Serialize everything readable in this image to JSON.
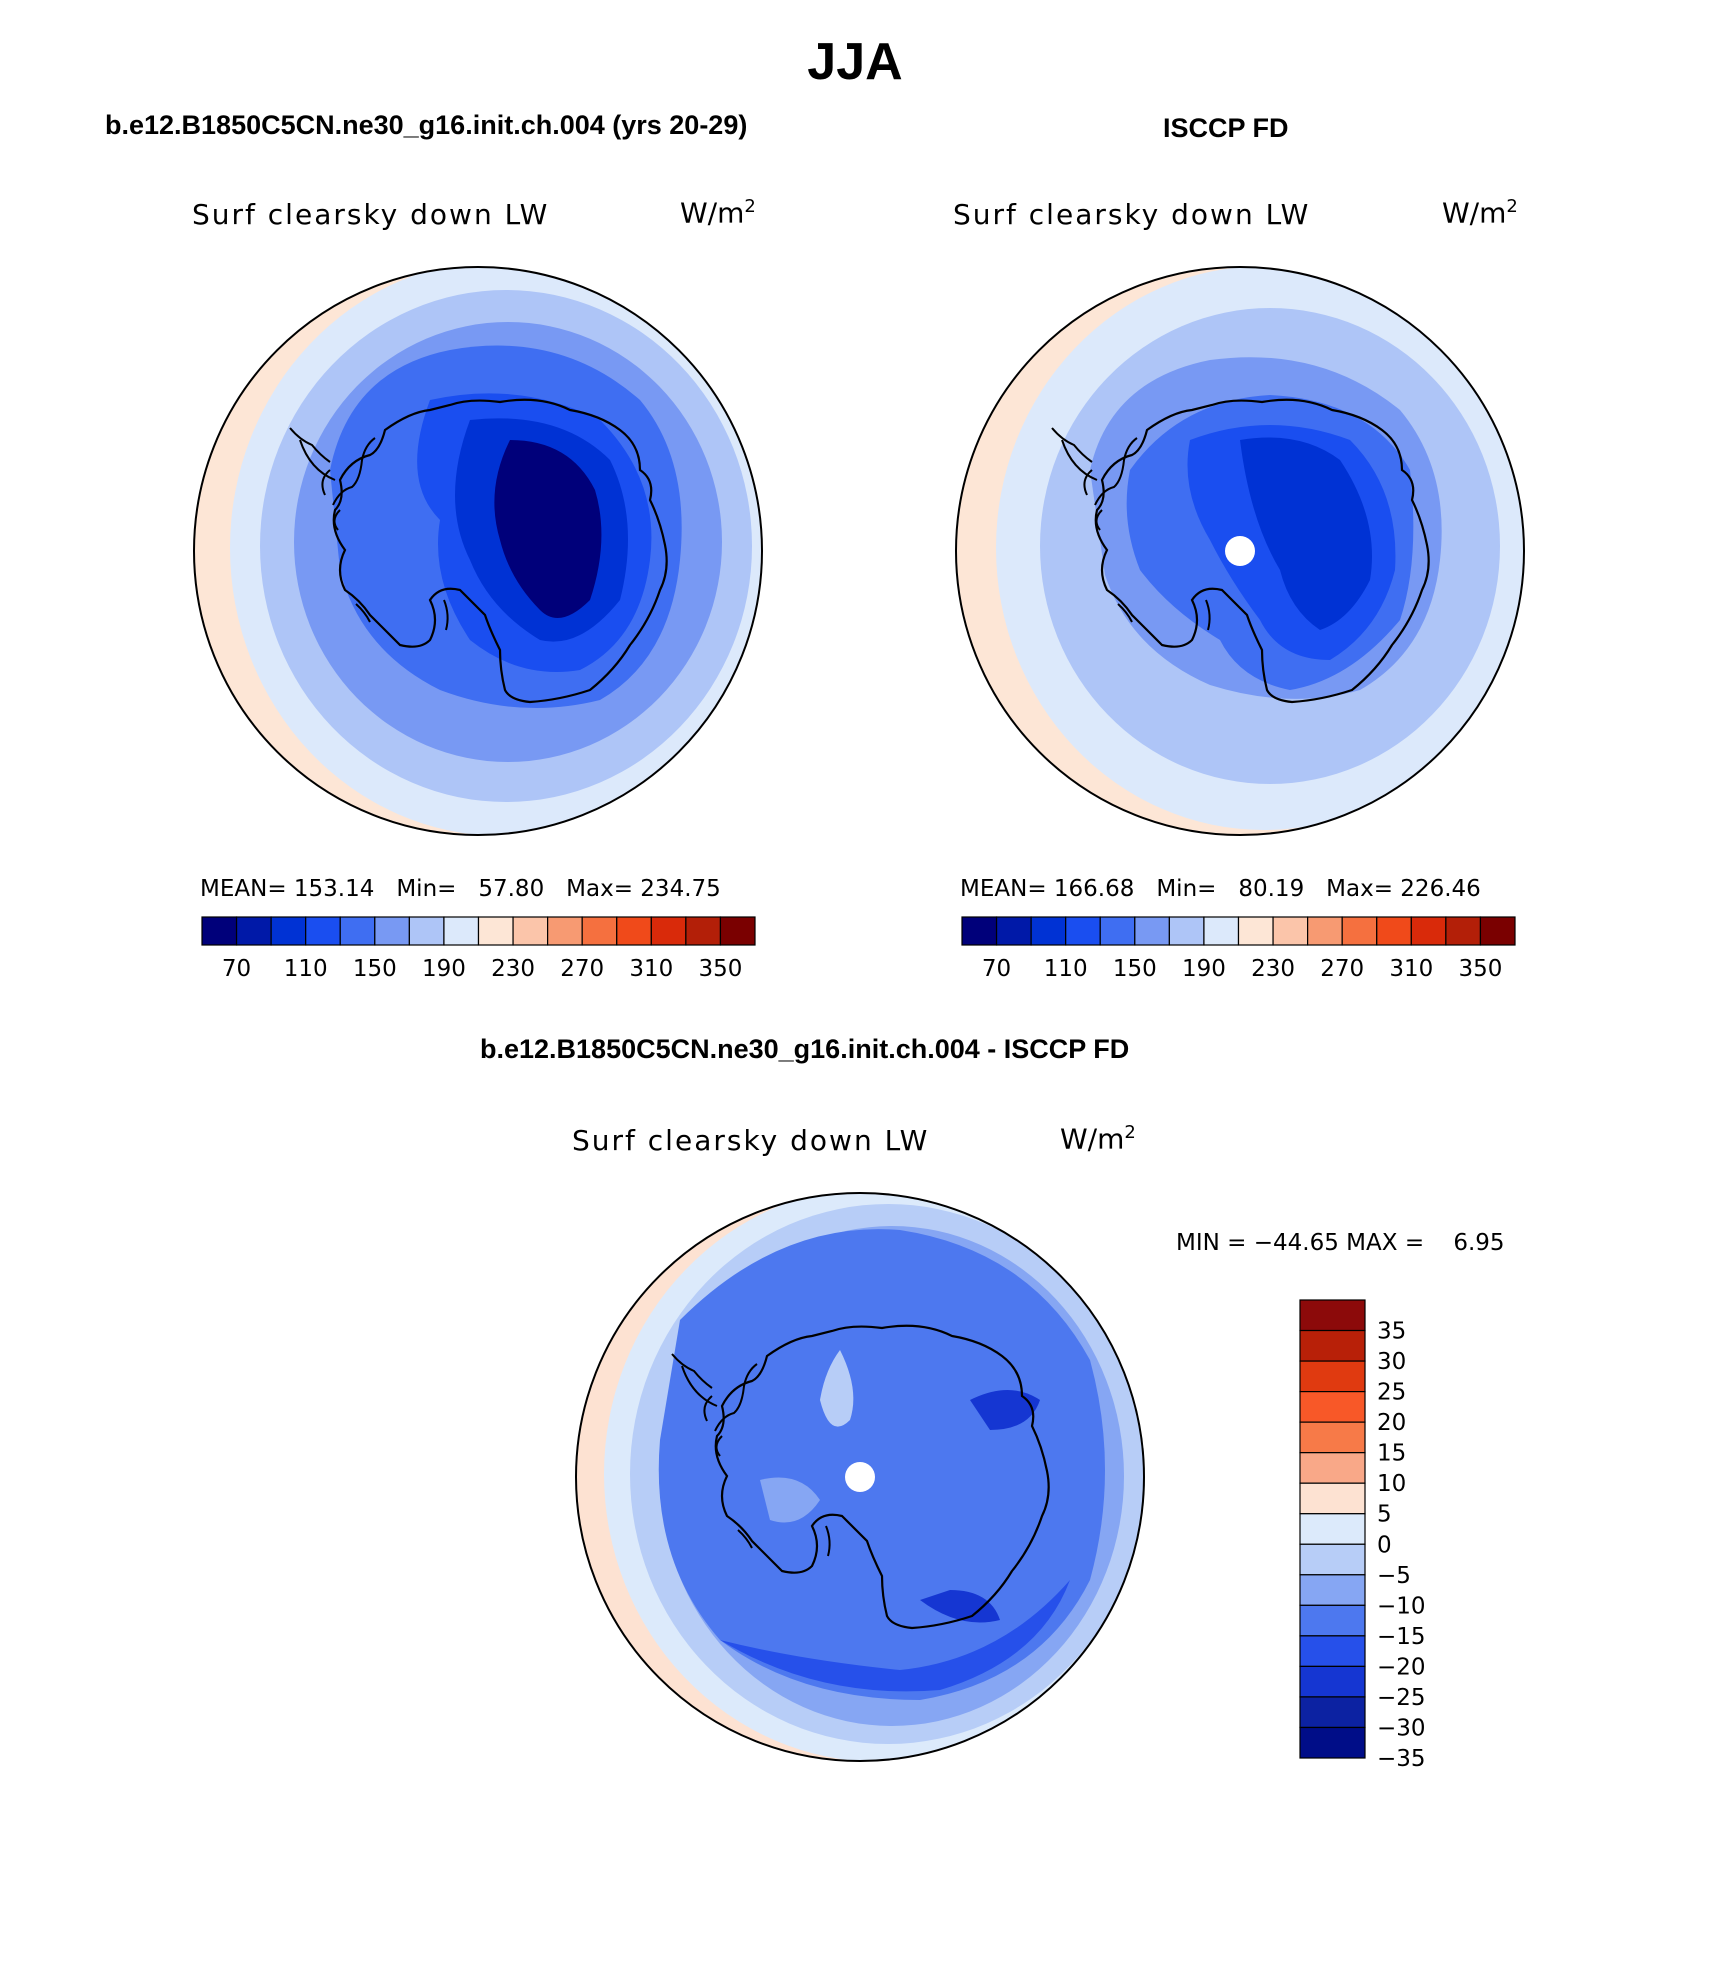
{
  "page": {
    "title": "JJA"
  },
  "panels": [
    {
      "id": "model",
      "title": "b.e12.B1850C5CN.ne30_g16.init.ch.004 (yrs 20-29)",
      "variable": "Surf clearsky down LW",
      "units": "W/m",
      "units_exp": "2",
      "stats": {
        "mean_label": "MEAN=",
        "mean": "153.14",
        "min_label": "Min=",
        "min": "57.80",
        "max_label": "Max=",
        "max": "234.75"
      }
    },
    {
      "id": "obs",
      "title": "ISCCP FD",
      "variable": "Surf clearsky down LW",
      "units": "W/m",
      "units_exp": "2",
      "stats": {
        "mean_label": "MEAN=",
        "mean": "166.68",
        "min_label": "Min=",
        "min": "80.19",
        "max_label": "Max=",
        "max": "226.46"
      }
    },
    {
      "id": "diff",
      "title": "b.e12.B1850C5CN.ne30_g16.init.ch.004 - ISCCP FD",
      "variable": "Surf clearsky down LW",
      "units": "W/m",
      "units_exp": "2",
      "stats": {
        "min_label": "MIN =",
        "min": "−44.65",
        "max_label": "MAX =",
        "max": "6.95"
      }
    }
  ],
  "colorbars": {
    "abs": {
      "colors": [
        "#00007a",
        "#0019a8",
        "#0032d4",
        "#1a4ef0",
        "#3f6ef2",
        "#7899f3",
        "#aec5f7",
        "#dce9fb",
        "#fde6d6",
        "#fbc5aa",
        "#f79a72",
        "#f5703f",
        "#f04a1a",
        "#d92a0a",
        "#b31f08",
        "#7a0000"
      ],
      "tick_labels": [
        "70",
        "110",
        "150",
        "190",
        "230",
        "270",
        "310",
        "350"
      ]
    },
    "diff": {
      "colors": [
        "#8c0a0a",
        "#b82008",
        "#e03a10",
        "#f85828",
        "#f77a48",
        "#f9a888",
        "#fde2d2",
        "#dceafb",
        "#b7cdf7",
        "#86a6f3",
        "#4d78ef",
        "#2650ea",
        "#1536d2",
        "#0c22a2",
        "#000d88"
      ],
      "tick_labels": [
        "35",
        "30",
        "25",
        "20",
        "15",
        "10",
        "5",
        "0",
        "−5",
        "−10",
        "−15",
        "−20",
        "−25",
        "−30",
        "−35"
      ]
    }
  },
  "map_fill": {
    "model": [
      "#fde6d6",
      "#dce9fb",
      "#aec5f7",
      "#7899f3",
      "#3f6ef2",
      "#1a4ef0",
      "#0032d4",
      "#00007a"
    ],
    "obs": [
      "#fde6d6",
      "#dce9fb",
      "#aec5f7",
      "#7899f3",
      "#3f6ef2",
      "#1a4ef0",
      "#0032d4"
    ],
    "diff": [
      "#fde2d2",
      "#dceafb",
      "#b7cdf7",
      "#86a6f3",
      "#4d78ef",
      "#2650ea",
      "#1536d2"
    ]
  }
}
